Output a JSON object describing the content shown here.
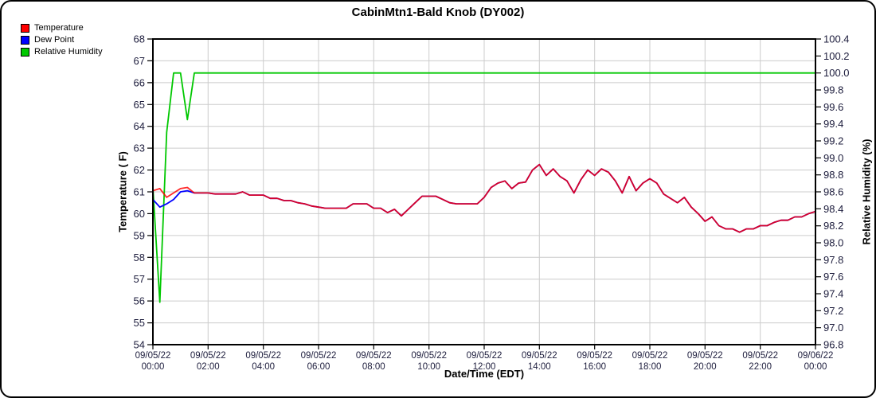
{
  "chart_data": {
    "type": "line",
    "title": "CabinMtn1-Bald Knob (DY002)",
    "xlabel": "Date/Time (EDT)",
    "ylabel_left": "Temperature ( F)",
    "ylabel_right": "Relative Humidity (%)",
    "grid": true,
    "legend_position": "top-left",
    "x_span_hours": 24,
    "x_tick_step_hours": 2,
    "sample_interval_hours": 0.25,
    "x_ticks": [
      {
        "date": "09/05/22",
        "time": "00:00"
      },
      {
        "date": "09/05/22",
        "time": "02:00"
      },
      {
        "date": "09/05/22",
        "time": "04:00"
      },
      {
        "date": "09/05/22",
        "time": "06:00"
      },
      {
        "date": "09/05/22",
        "time": "08:00"
      },
      {
        "date": "09/05/22",
        "time": "10:00"
      },
      {
        "date": "09/05/22",
        "time": "12:00"
      },
      {
        "date": "09/05/22",
        "time": "14:00"
      },
      {
        "date": "09/05/22",
        "time": "16:00"
      },
      {
        "date": "09/05/22",
        "time": "18:00"
      },
      {
        "date": "09/05/22",
        "time": "20:00"
      },
      {
        "date": "09/05/22",
        "time": "22:00"
      },
      {
        "date": "09/06/22",
        "time": "00:00"
      }
    ],
    "y_left": {
      "min": 54,
      "max": 68,
      "tick_step": 1,
      "decimals": 0
    },
    "y_right": {
      "min": 96.8,
      "max": 100.4,
      "tick_step": 0.2,
      "decimals": 1
    },
    "colors": {
      "grid": "#cccccc",
      "axis": "#000000",
      "tick_text": "#1c1c3c"
    },
    "series": [
      {
        "name": "Temperature",
        "axis": "left",
        "color": "#ff0000",
        "values": [
          61.05,
          61.15,
          60.75,
          60.95,
          61.15,
          61.2,
          60.95,
          60.95,
          60.95,
          60.9,
          60.9,
          60.9,
          60.9,
          61.0,
          60.85,
          60.85,
          60.85,
          60.7,
          60.7,
          60.6,
          60.6,
          60.5,
          60.45,
          60.35,
          60.3,
          60.25,
          60.25,
          60.25,
          60.25,
          60.45,
          60.45,
          60.45,
          60.25,
          60.25,
          60.05,
          60.2,
          59.9,
          60.2,
          60.5,
          60.8,
          60.8,
          60.8,
          60.65,
          60.5,
          60.45,
          60.45,
          60.45,
          60.45,
          60.75,
          61.2,
          61.4,
          61.5,
          61.15,
          61.4,
          61.45,
          62.0,
          62.25,
          61.75,
          62.05,
          61.7,
          61.5,
          60.95,
          61.55,
          62.0,
          61.75,
          62.05,
          61.9,
          61.5,
          60.95,
          61.7,
          61.05,
          61.4,
          61.6,
          61.4,
          60.9,
          60.7,
          60.5,
          60.75,
          60.3,
          60.0,
          59.65,
          59.85,
          59.45,
          59.3,
          59.3,
          59.15,
          59.3,
          59.3,
          59.45,
          59.45,
          59.6,
          59.7,
          59.7,
          59.85,
          59.85,
          60.0,
          60.1
        ]
      },
      {
        "name": "Dew Point",
        "axis": "left",
        "color": "#0000ff",
        "values": [
          60.65,
          60.3,
          60.45,
          60.65,
          61.0,
          61.05,
          60.95,
          60.95,
          60.95,
          60.9,
          60.9,
          60.9,
          60.9,
          61.0,
          60.85,
          60.85,
          60.85,
          60.7,
          60.7,
          60.6,
          60.6,
          60.5,
          60.45,
          60.35,
          60.3,
          60.25,
          60.25,
          60.25,
          60.25,
          60.45,
          60.45,
          60.45,
          60.25,
          60.25,
          60.05,
          60.2,
          59.9,
          60.2,
          60.5,
          60.8,
          60.8,
          60.8,
          60.65,
          60.5,
          60.45,
          60.45,
          60.45,
          60.45,
          60.75,
          61.2,
          61.4,
          61.5,
          61.15,
          61.4,
          61.45,
          62.0,
          62.25,
          61.75,
          62.05,
          61.7,
          61.5,
          60.95,
          61.55,
          62.0,
          61.75,
          62.05,
          61.9,
          61.5,
          60.95,
          61.7,
          61.05,
          61.4,
          61.6,
          61.4,
          60.9,
          60.7,
          60.5,
          60.75,
          60.3,
          60.0,
          59.65,
          59.85,
          59.45,
          59.3,
          59.3,
          59.15,
          59.3,
          59.3,
          59.45,
          59.45,
          59.6,
          59.7,
          59.7,
          59.85,
          59.85,
          60.0,
          60.1
        ]
      },
      {
        "name": "Relative Humidity",
        "axis": "right",
        "color": "#00c800",
        "values": [
          98.65,
          97.3,
          99.3,
          100.0,
          100.0,
          99.45,
          100.0,
          100.0,
          100.0,
          100.0,
          100.0,
          100.0,
          100.0,
          100.0,
          100.0,
          100.0,
          100.0,
          100.0,
          100.0,
          100.0,
          100.0,
          100.0,
          100.0,
          100.0,
          100.0,
          100.0,
          100.0,
          100.0,
          100.0,
          100.0,
          100.0,
          100.0,
          100.0,
          100.0,
          100.0,
          100.0,
          100.0,
          100.0,
          100.0,
          100.0,
          100.0,
          100.0,
          100.0,
          100.0,
          100.0,
          100.0,
          100.0,
          100.0,
          100.0,
          100.0,
          100.0,
          100.0,
          100.0,
          100.0,
          100.0,
          100.0,
          100.0,
          100.0,
          100.0,
          100.0,
          100.0,
          100.0,
          100.0,
          100.0,
          100.0,
          100.0,
          100.0,
          100.0,
          100.0,
          100.0,
          100.0,
          100.0,
          100.0,
          100.0,
          100.0,
          100.0,
          100.0,
          100.0,
          100.0,
          100.0,
          100.0,
          100.0,
          100.0,
          100.0,
          100.0,
          100.0,
          100.0,
          100.0,
          100.0,
          100.0,
          100.0,
          100.0,
          100.0,
          100.0,
          100.0,
          100.0,
          100.0
        ]
      }
    ]
  }
}
